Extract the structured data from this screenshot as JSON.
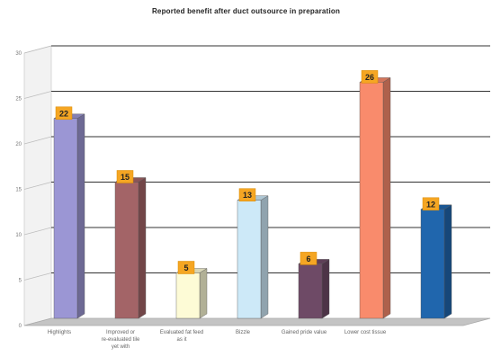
{
  "chart_data": {
    "type": "bar",
    "title": "Reported benefit after duct outsource in preparation",
    "xlabel": "",
    "ylabel": "",
    "ylim": [
      0,
      30
    ],
    "y_ticks": [
      "0",
      "5",
      "10",
      "15",
      "20",
      "25",
      "30"
    ],
    "grid": true,
    "categories": [
      "Highlights",
      "Improved or re-evaluated tile yet with",
      "Evaluated fat feed as it",
      "Bizzle",
      "Gained pride value",
      "Lower cost tissue",
      ""
    ],
    "values": [
      22,
      15,
      5,
      13,
      6,
      26,
      12
    ],
    "colors": [
      "#9b96d4",
      "#a36467",
      "#fdfbd6",
      "#cde9f8",
      "#6e4a66",
      "#f98b6c",
      "#2066ad"
    ]
  }
}
